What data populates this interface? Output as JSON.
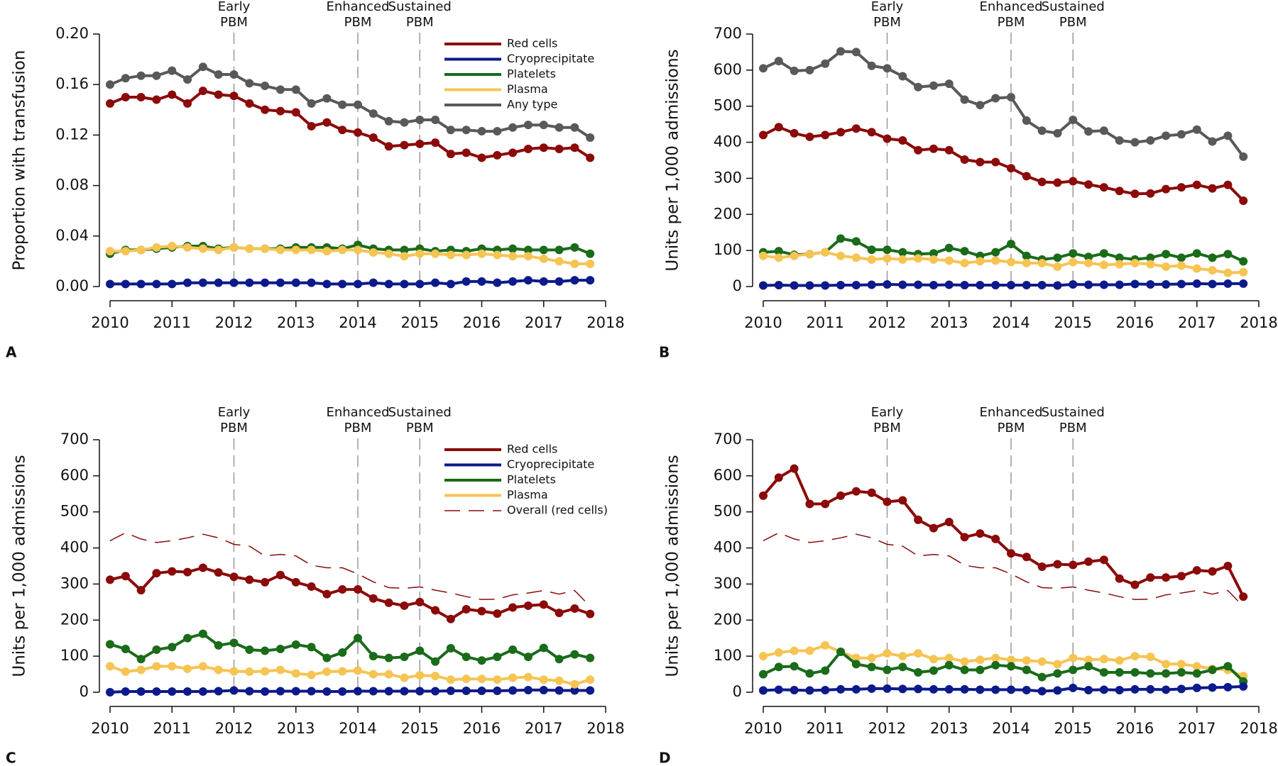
{
  "chart_data": [
    {
      "type": "line",
      "panel": "A",
      "ylabel": "Proportion with transfusion",
      "x": [
        2010,
        2010.25,
        2010.5,
        2010.75,
        2011,
        2011.25,
        2011.5,
        2011.75,
        2012,
        2012.25,
        2012.5,
        2012.75,
        2013,
        2013.25,
        2013.5,
        2013.75,
        2014,
        2014.25,
        2014.5,
        2014.75,
        2015,
        2015.25,
        2015.5,
        2015.75,
        2016,
        2016.25,
        2016.5,
        2016.75,
        2017,
        2017.25,
        2017.5,
        2017.75
      ],
      "xlim": [
        2010,
        2018
      ],
      "xticks": [
        2010,
        2011,
        2012,
        2013,
        2014,
        2015,
        2016,
        2017,
        2018
      ],
      "ylim": [
        0,
        0.2
      ],
      "yticks": [
        {
          "value": 0,
          "label": "0.00"
        },
        {
          "value": 0.04,
          "label": "0.04"
        },
        {
          "value": 0.08,
          "label": "0.08"
        },
        {
          "value": 0.12,
          "label": "0.12"
        },
        {
          "value": 0.16,
          "label": "0.16"
        },
        {
          "value": 0.2,
          "label": "0.20"
        }
      ],
      "annotations": [
        {
          "x": 2012,
          "text": [
            "Early",
            "PBM"
          ]
        },
        {
          "x": 2014,
          "text": [
            "Enhanced",
            "PBM"
          ]
        },
        {
          "x": 2015,
          "text": [
            "Sustained",
            "PBM"
          ]
        }
      ],
      "legend": "upper right",
      "series": [
        {
          "name": "Red cells",
          "color": "#8b0a0a",
          "values": [
            0.145,
            0.15,
            0.15,
            0.148,
            0.152,
            0.145,
            0.155,
            0.152,
            0.151,
            0.145,
            0.14,
            0.139,
            0.138,
            0.127,
            0.13,
            0.124,
            0.122,
            0.118,
            0.111,
            0.112,
            0.113,
            0.114,
            0.105,
            0.106,
            0.102,
            0.104,
            0.106,
            0.109,
            0.11,
            0.109,
            0.11,
            0.102
          ]
        },
        {
          "name": "Cryoprecipitate",
          "color": "#0c1a8a",
          "values": [
            0.002,
            0.002,
            0.002,
            0.002,
            0.002,
            0.003,
            0.003,
            0.003,
            0.003,
            0.003,
            0.003,
            0.003,
            0.003,
            0.003,
            0.002,
            0.002,
            0.002,
            0.003,
            0.002,
            0.002,
            0.002,
            0.003,
            0.002,
            0.004,
            0.004,
            0.003,
            0.004,
            0.005,
            0.004,
            0.004,
            0.005,
            0.005
          ]
        },
        {
          "name": "Platelets",
          "color": "#1a6b1a",
          "values": [
            0.026,
            0.029,
            0.029,
            0.03,
            0.031,
            0.032,
            0.032,
            0.03,
            0.031,
            0.03,
            0.03,
            0.03,
            0.031,
            0.031,
            0.031,
            0.03,
            0.033,
            0.03,
            0.029,
            0.029,
            0.03,
            0.028,
            0.029,
            0.028,
            0.03,
            0.029,
            0.03,
            0.029,
            0.029,
            0.029,
            0.031,
            0.026
          ]
        },
        {
          "name": "Plasma",
          "color": "#f6c453",
          "values": [
            0.028,
            0.028,
            0.029,
            0.031,
            0.032,
            0.031,
            0.03,
            0.029,
            0.031,
            0.03,
            0.03,
            0.029,
            0.029,
            0.029,
            0.028,
            0.029,
            0.029,
            0.027,
            0.026,
            0.024,
            0.026,
            0.026,
            0.025,
            0.025,
            0.026,
            0.025,
            0.024,
            0.024,
            0.022,
            0.02,
            0.018,
            0.018
          ]
        },
        {
          "name": "Any type",
          "color": "#595959",
          "values": [
            0.16,
            0.165,
            0.167,
            0.167,
            0.171,
            0.164,
            0.174,
            0.168,
            0.168,
            0.161,
            0.159,
            0.156,
            0.156,
            0.145,
            0.149,
            0.144,
            0.144,
            0.137,
            0.131,
            0.13,
            0.132,
            0.132,
            0.124,
            0.124,
            0.123,
            0.123,
            0.126,
            0.128,
            0.128,
            0.126,
            0.126,
            0.118
          ]
        }
      ]
    },
    {
      "type": "line",
      "panel": "B",
      "ylabel": "Units per 1,000 admissions",
      "x": [
        2010,
        2010.25,
        2010.5,
        2010.75,
        2011,
        2011.25,
        2011.5,
        2011.75,
        2012,
        2012.25,
        2012.5,
        2012.75,
        2013,
        2013.25,
        2013.5,
        2013.75,
        2014,
        2014.25,
        2014.5,
        2014.75,
        2015,
        2015.25,
        2015.5,
        2015.75,
        2016,
        2016.25,
        2016.5,
        2016.75,
        2017,
        2017.25,
        2017.5,
        2017.75
      ],
      "xlim": [
        2010,
        2018
      ],
      "xticks": [
        2010,
        2011,
        2012,
        2013,
        2014,
        2015,
        2016,
        2017,
        2018
      ],
      "ylim": [
        0,
        700
      ],
      "yticks": [
        0,
        100,
        200,
        300,
        400,
        500,
        600,
        700
      ],
      "annotations": [
        {
          "x": 2012,
          "text": [
            "Early",
            "PBM"
          ]
        },
        {
          "x": 2014,
          "text": [
            "Enhanced",
            "PBM"
          ]
        },
        {
          "x": 2015,
          "text": [
            "Sustained",
            "PBM"
          ]
        }
      ],
      "series": [
        {
          "color": "#595959",
          "values": [
            605,
            625,
            598,
            600,
            618,
            652,
            650,
            612,
            605,
            583,
            553,
            557,
            562,
            518,
            503,
            522,
            525,
            460,
            432,
            425,
            462,
            430,
            432,
            405,
            400,
            405,
            418,
            422,
            435,
            402,
            418,
            360
          ]
        },
        {
          "color": "#8b0a0a",
          "values": [
            420,
            442,
            425,
            415,
            420,
            428,
            438,
            428,
            410,
            405,
            378,
            382,
            378,
            352,
            345,
            345,
            328,
            306,
            290,
            288,
            292,
            283,
            275,
            265,
            257,
            258,
            270,
            275,
            282,
            272,
            282,
            238
          ]
        },
        {
          "color": "#1a6b1a",
          "values": [
            95,
            98,
            88,
            90,
            95,
            133,
            125,
            102,
            102,
            95,
            90,
            92,
            107,
            98,
            85,
            95,
            118,
            85,
            75,
            80,
            92,
            82,
            92,
            80,
            75,
            80,
            90,
            80,
            92,
            80,
            90,
            70
          ]
        },
        {
          "color": "#f6c453",
          "values": [
            85,
            80,
            85,
            90,
            95,
            85,
            80,
            75,
            78,
            75,
            78,
            75,
            72,
            65,
            70,
            72,
            68,
            65,
            65,
            55,
            68,
            65,
            60,
            62,
            65,
            62,
            55,
            58,
            50,
            45,
            38,
            40
          ]
        },
        {
          "color": "#0c1a8a",
          "values": [
            3,
            4,
            3,
            3,
            3,
            4,
            4,
            5,
            6,
            5,
            5,
            4,
            5,
            4,
            4,
            4,
            4,
            4,
            4,
            3,
            6,
            5,
            5,
            5,
            7,
            6,
            6,
            7,
            8,
            7,
            8,
            8
          ]
        }
      ]
    },
    {
      "type": "line",
      "panel": "C",
      "ylabel": "Units per 1,000 admissions",
      "x": [
        2010,
        2010.25,
        2010.5,
        2010.75,
        2011,
        2011.25,
        2011.5,
        2011.75,
        2012,
        2012.25,
        2012.5,
        2012.75,
        2013,
        2013.25,
        2013.5,
        2013.75,
        2014,
        2014.25,
        2014.5,
        2014.75,
        2015,
        2015.25,
        2015.5,
        2015.75,
        2016,
        2016.25,
        2016.5,
        2016.75,
        2017,
        2017.25,
        2017.5,
        2017.75
      ],
      "xlim": [
        2010,
        2018
      ],
      "xticks": [
        2010,
        2011,
        2012,
        2013,
        2014,
        2015,
        2016,
        2017,
        2018
      ],
      "ylim": [
        0,
        700
      ],
      "yticks": [
        0,
        100,
        200,
        300,
        400,
        500,
        600,
        700
      ],
      "annotations": [
        {
          "x": 2012,
          "text": [
            "Early",
            "PBM"
          ]
        },
        {
          "x": 2014,
          "text": [
            "Enhanced",
            "PBM"
          ]
        },
        {
          "x": 2015,
          "text": [
            "Sustained",
            "PBM"
          ]
        }
      ],
      "legend": "upper right",
      "series": [
        {
          "name": "Red cells",
          "color": "#8b0a0a",
          "values": [
            312,
            322,
            283,
            330,
            335,
            333,
            345,
            332,
            320,
            312,
            305,
            325,
            305,
            293,
            272,
            285,
            285,
            260,
            248,
            240,
            250,
            227,
            203,
            230,
            225,
            218,
            235,
            240,
            243,
            220,
            232,
            217
          ]
        },
        {
          "name": "Cryoprecipitate",
          "color": "#0c1a8a",
          "values": [
            0,
            2,
            2,
            2,
            2,
            2,
            2,
            3,
            5,
            3,
            2,
            3,
            3,
            3,
            2,
            2,
            3,
            3,
            3,
            3,
            3,
            3,
            4,
            4,
            4,
            4,
            5,
            6,
            6,
            5,
            5,
            5
          ]
        },
        {
          "name": "Platelets",
          "color": "#1a6b1a",
          "values": [
            133,
            120,
            92,
            118,
            125,
            150,
            162,
            130,
            137,
            118,
            115,
            120,
            132,
            125,
            95,
            110,
            150,
            100,
            95,
            98,
            115,
            85,
            122,
            98,
            88,
            98,
            118,
            98,
            123,
            92,
            105,
            95
          ]
        },
        {
          "name": "Plasma",
          "color": "#f6c453",
          "values": [
            72,
            57,
            62,
            72,
            72,
            65,
            72,
            62,
            58,
            57,
            58,
            62,
            52,
            48,
            57,
            58,
            60,
            50,
            50,
            40,
            47,
            45,
            35,
            37,
            37,
            35,
            40,
            42,
            35,
            32,
            22,
            35
          ]
        },
        {
          "name": "Overall (red cells)",
          "color": "#8b0a0a",
          "dashed": true,
          "values": [
            420,
            442,
            425,
            415,
            420,
            428,
            438,
            428,
            410,
            405,
            378,
            382,
            378,
            352,
            345,
            345,
            328,
            306,
            290,
            288,
            292,
            283,
            275,
            265,
            257,
            258,
            270,
            275,
            282,
            272,
            282,
            238
          ]
        }
      ]
    },
    {
      "type": "line",
      "panel": "D",
      "ylabel": "Units per 1,000 admissions",
      "x": [
        2010,
        2010.25,
        2010.5,
        2010.75,
        2011,
        2011.25,
        2011.5,
        2011.75,
        2012,
        2012.25,
        2012.5,
        2012.75,
        2013,
        2013.25,
        2013.5,
        2013.75,
        2014,
        2014.25,
        2014.5,
        2014.75,
        2015,
        2015.25,
        2015.5,
        2015.75,
        2016,
        2016.25,
        2016.5,
        2016.75,
        2017,
        2017.25,
        2017.5,
        2017.75
      ],
      "xlim": [
        2010,
        2018
      ],
      "xticks": [
        2010,
        2011,
        2012,
        2013,
        2014,
        2015,
        2016,
        2017,
        2018
      ],
      "ylim": [
        0,
        700
      ],
      "yticks": [
        0,
        100,
        200,
        300,
        400,
        500,
        600,
        700
      ],
      "annotations": [
        {
          "x": 2012,
          "text": [
            "Early",
            "PBM"
          ]
        },
        {
          "x": 2014,
          "text": [
            "Enhanced",
            "PBM"
          ]
        },
        {
          "x": 2015,
          "text": [
            "Sustained",
            "PBM"
          ]
        }
      ],
      "series": [
        {
          "color": "#8b0a0a",
          "values": [
            545,
            595,
            620,
            522,
            522,
            545,
            557,
            553,
            528,
            532,
            478,
            455,
            472,
            430,
            440,
            425,
            385,
            375,
            348,
            355,
            353,
            362,
            367,
            315,
            298,
            318,
            318,
            322,
            338,
            335,
            350,
            265
          ]
        },
        {
          "color": "#f6c453",
          "values": [
            100,
            110,
            115,
            115,
            130,
            112,
            95,
            95,
            108,
            100,
            108,
            92,
            95,
            85,
            90,
            95,
            90,
            88,
            85,
            78,
            95,
            90,
            92,
            88,
            100,
            98,
            78,
            78,
            72,
            65,
            62,
            45
          ]
        },
        {
          "color": "#1a6b1a",
          "values": [
            50,
            70,
            72,
            52,
            60,
            112,
            78,
            70,
            62,
            70,
            55,
            60,
            75,
            62,
            62,
            75,
            72,
            62,
            42,
            52,
            62,
            72,
            55,
            55,
            55,
            52,
            52,
            55,
            52,
            62,
            72,
            30
          ]
        },
        {
          "color": "#0c1a8a",
          "values": [
            5,
            7,
            6,
            5,
            6,
            8,
            8,
            10,
            10,
            9,
            9,
            8,
            8,
            8,
            7,
            7,
            7,
            6,
            3,
            5,
            12,
            6,
            7,
            6,
            8,
            8,
            7,
            9,
            12,
            13,
            14,
            16
          ]
        },
        {
          "color": "#8b0a0a",
          "dashed": true,
          "values": [
            420,
            442,
            425,
            415,
            420,
            428,
            438,
            428,
            410,
            405,
            378,
            382,
            378,
            352,
            345,
            345,
            328,
            306,
            290,
            288,
            292,
            283,
            275,
            265,
            257,
            258,
            270,
            275,
            282,
            272,
            282,
            238
          ]
        }
      ]
    }
  ]
}
